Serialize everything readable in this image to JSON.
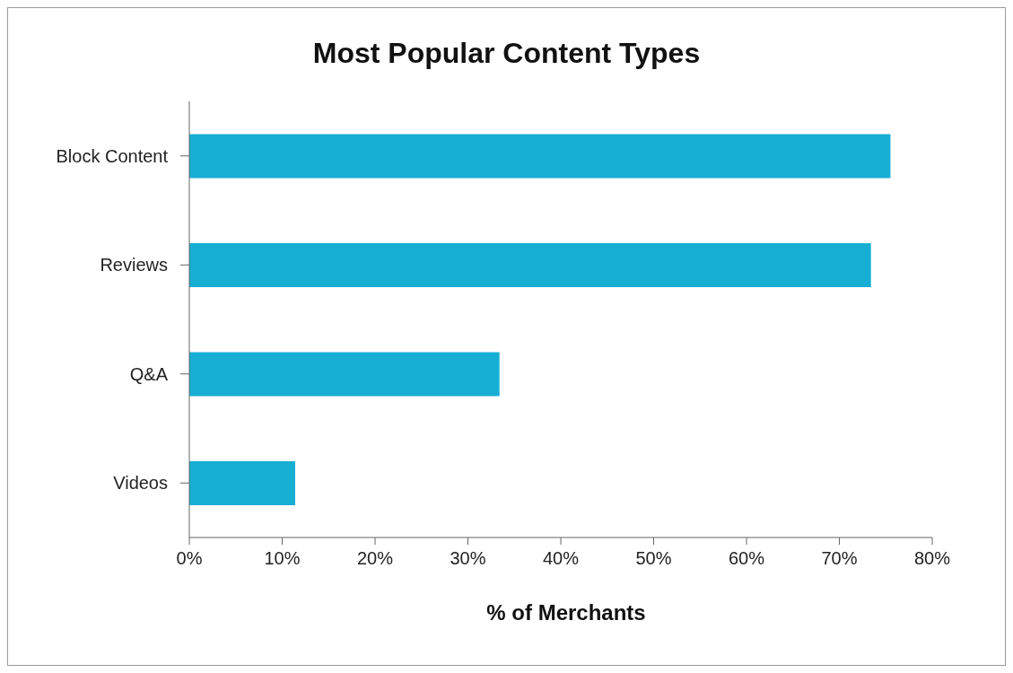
{
  "chart_data": {
    "type": "bar",
    "orientation": "horizontal",
    "title": "Most Popular Content Types",
    "xlabel": "% of Merchants",
    "categories": [
      "Block Content",
      "Reviews",
      "Q&A",
      "Videos"
    ],
    "values": [
      75.5,
      73.4,
      33.4,
      11.4
    ],
    "color": "#17aed4",
    "xlim": [
      0,
      80
    ],
    "xticks": [
      {
        "value": 0,
        "label": "0%"
      },
      {
        "value": 10,
        "label": "10%"
      },
      {
        "value": 20,
        "label": "20%"
      },
      {
        "value": 30,
        "label": "30%"
      },
      {
        "value": 40,
        "label": "40%"
      },
      {
        "value": 50,
        "label": "50%"
      },
      {
        "value": 60,
        "label": "60%"
      },
      {
        "value": 70,
        "label": "70%"
      },
      {
        "value": 80,
        "label": "80%"
      }
    ],
    "grid": false,
    "legend": false
  }
}
